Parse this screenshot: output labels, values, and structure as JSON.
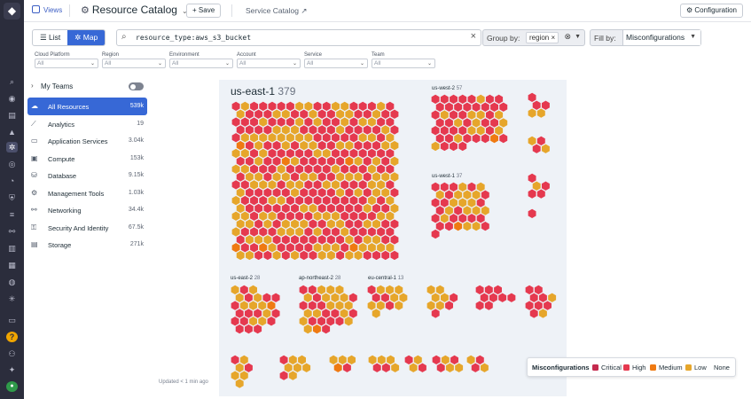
{
  "header": {
    "views_label": "Views",
    "title": "Resource Catalog",
    "save_label": "Save",
    "service_catalog_label": "Service Catalog",
    "configuration_label": "Configuration"
  },
  "toolbar": {
    "list_label": "List",
    "map_label": "Map",
    "search_query": "resource_type:aws_s3_bucket",
    "group_by_label": "Group by:",
    "group_by_tag": "region",
    "fill_by_label": "Fill by:",
    "fill_by_value": "Misconfigurations"
  },
  "facets": [
    {
      "label": "Cloud Platform",
      "value": "All"
    },
    {
      "label": "Region",
      "value": "All"
    },
    {
      "label": "Environment",
      "value": "All"
    },
    {
      "label": "Account",
      "value": "All"
    },
    {
      "label": "Service",
      "value": "All"
    },
    {
      "label": "Team",
      "value": "All"
    }
  ],
  "sidebar": {
    "my_teams_label": "My Teams",
    "items": [
      {
        "label": "All Resources",
        "count": "539k",
        "icon": "cloud-icon"
      },
      {
        "label": "Analytics",
        "count": "19",
        "icon": "analytics-icon"
      },
      {
        "label": "Application Services",
        "count": "3.04k",
        "icon": "app-services-icon"
      },
      {
        "label": "Compute",
        "count": "153k",
        "icon": "compute-icon"
      },
      {
        "label": "Database",
        "count": "9.15k",
        "icon": "database-icon"
      },
      {
        "label": "Management Tools",
        "count": "1.03k",
        "icon": "management-icon"
      },
      {
        "label": "Networking",
        "count": "34.4k",
        "icon": "networking-icon"
      },
      {
        "label": "Security And Identity",
        "count": "67.5k",
        "icon": "security-icon"
      },
      {
        "label": "Storage",
        "count": "271k",
        "icon": "storage-icon"
      }
    ],
    "updated_text": "Updated < 1 min ago"
  },
  "map": {
    "groups": [
      {
        "name": "us-east-1",
        "count": "379"
      },
      {
        "name": "us-west-2",
        "count": "57"
      },
      {
        "name": "us-west-1",
        "count": "37"
      },
      {
        "name": "us-east-2",
        "count": "28"
      },
      {
        "name": "ap-northeast-2",
        "count": "28"
      },
      {
        "name": "eu-central-1",
        "count": "13"
      }
    ]
  },
  "legend": {
    "title": "Misconfigurations",
    "items": [
      {
        "label": "Critical",
        "color": "#c42a4e"
      },
      {
        "label": "High",
        "color": "#e5394f"
      },
      {
        "label": "Medium",
        "color": "#ef7a12"
      },
      {
        "label": "Low",
        "color": "#e6a62b"
      },
      {
        "label": "None",
        "color": "#ffffff"
      }
    ]
  },
  "colors": {
    "accent": "#3768d6",
    "hex_high": "#e5394f",
    "hex_low": "#e6a62b",
    "hex_medium": "#ef7a12"
  }
}
